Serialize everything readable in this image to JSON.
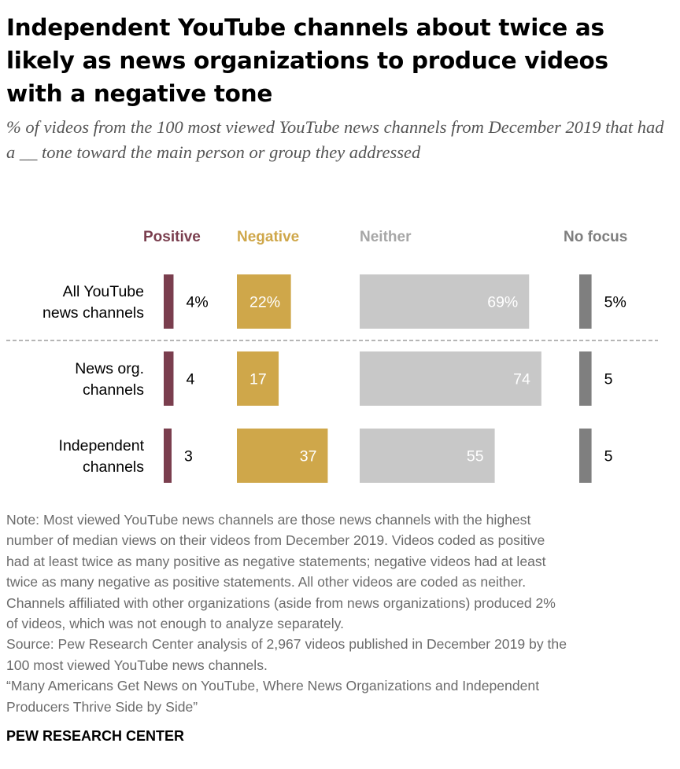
{
  "title": "Independent YouTube channels about twice as likely as news organizations to produce videos with a negative tone",
  "subtitle": "% of videos from the 100 most viewed YouTube news channels from December 2019 that had a __ tone toward the main person or group they addressed",
  "chart_data": {
    "type": "bar",
    "categories": [
      [
        "All YouTube",
        "news channels"
      ],
      [
        "News org.",
        "channels"
      ],
      [
        "Independent",
        "channels"
      ]
    ],
    "series": [
      {
        "name": "Positive",
        "color": "#7a3e4e",
        "values": [
          4,
          4,
          3
        ],
        "labels": [
          "4%",
          "4",
          "3"
        ]
      },
      {
        "name": "Negative",
        "color": "#cfa74a",
        "values": [
          22,
          17,
          37
        ],
        "labels": [
          "22%",
          "17",
          "37"
        ]
      },
      {
        "name": "Neither",
        "color": "#c8c8c8",
        "values": [
          69,
          74,
          55
        ],
        "labels": [
          "69%",
          "74",
          "55"
        ]
      },
      {
        "name": "No focus",
        "color": "#7f7f7f",
        "values": [
          5,
          5,
          5
        ],
        "labels": [
          "5%",
          "5",
          "5"
        ]
      }
    ],
    "legend": "top",
    "grid": false
  },
  "notes": [
    "Note: Most viewed YouTube news channels are those news channels with the highest",
    "number of median views on their videos from December 2019. Videos coded as positive",
    "had at least twice as many positive as negative statements; negative videos had at least",
    "twice as many negative as positive statements. All other videos are coded as neither.",
    "Channels affiliated with other organizations (aside from news organizations) produced 2%",
    "of videos, which was not enough to analyze separately.",
    "Source: Pew Research Center analysis of 2,967 videos published in December 2019 by the",
    "100 most viewed YouTube news channels.",
    "“Many Americans Get News on YouTube, Where News Organizations and Independent",
    "Producers Thrive Side by Side”"
  ],
  "brand": "PEW RESEARCH CENTER"
}
